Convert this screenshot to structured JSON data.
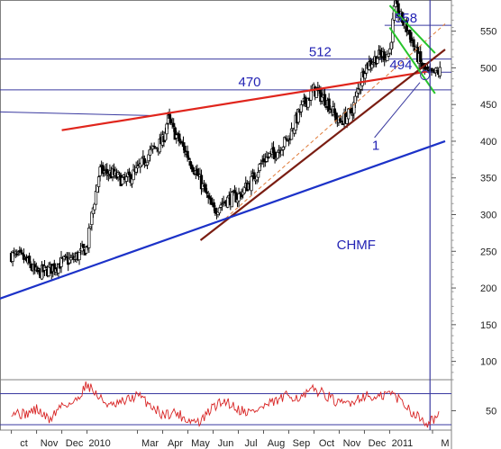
{
  "chart_data": {
    "type": "candlestick",
    "ticker_label": "CHMF",
    "price_axis": {
      "range": [
        75,
        590
      ],
      "ticks": [
        100,
        150,
        200,
        250,
        300,
        350,
        400,
        450,
        500,
        550
      ],
      "tick_labels": [
        "100",
        "150",
        "200",
        "250",
        "300",
        "350",
        "400",
        "450",
        "500",
        "550"
      ]
    },
    "indicator_axis": {
      "range": [
        25,
        90
      ],
      "ticks": [
        50
      ],
      "tick_labels": [
        "50"
      ],
      "guide_levels": [
        72,
        32
      ]
    },
    "x_axis": {
      "labels": [
        "ct",
        "Nov",
        "Dec",
        "2010",
        "Mar",
        "Apr",
        "May",
        "Jun",
        "Jul",
        "Aug",
        "Sep",
        "Oct",
        "Nov",
        "Dec",
        "2011",
        "M"
      ],
      "label_positions": [
        0.5,
        1.5,
        2.5,
        3.5,
        5.5,
        6.5,
        7.5,
        8.5,
        9.5,
        10.5,
        11.5,
        12.5,
        13.5,
        14.5,
        15.5,
        17.2
      ]
    },
    "price_series": {
      "name": "",
      "month_index": [
        0.0,
        0.5,
        1.0,
        1.5,
        2.0,
        2.5,
        3.0,
        3.2,
        3.5,
        4.0,
        4.5,
        5.0,
        5.5,
        6.0,
        6.2,
        6.5,
        7.0,
        7.5,
        8.0,
        8.5,
        9.0,
        9.5,
        10.0,
        10.5,
        11.0,
        11.5,
        12.0,
        12.5,
        13.0,
        13.5,
        14.0,
        14.5,
        15.0,
        15.2,
        15.5,
        15.8,
        16.0,
        16.3,
        16.6,
        17.0
      ],
      "close": [
        245,
        240,
        220,
        225,
        235,
        240,
        255,
        300,
        360,
        355,
        345,
        360,
        385,
        400,
        430,
        410,
        380,
        345,
        305,
        320,
        325,
        345,
        375,
        385,
        405,
        445,
        470,
        455,
        425,
        440,
        500,
        515,
        520,
        585,
        565,
        545,
        525,
        500,
        490,
        495
      ]
    },
    "annotations": {
      "level_labels": [
        "558",
        "512",
        "494",
        "470"
      ],
      "level_values": [
        558,
        512,
        494,
        470
      ],
      "wave_label": "1"
    },
    "trendlines": {
      "red_resistance": [
        [
          2.0,
          415
        ],
        [
          16.5,
          495
        ]
      ],
      "brown_support": [
        [
          7.5,
          265
        ],
        [
          17.2,
          525
        ]
      ],
      "blue_support": [
        [
          -0.5,
          185
        ],
        [
          17.2,
          400
        ]
      ],
      "orange_dashed": [
        [
          8.5,
          295
        ],
        [
          17.2,
          560
        ]
      ],
      "green_channel_upper": [
        [
          15.0,
          585
        ],
        [
          16.8,
          520
        ]
      ],
      "green_channel_lower": [
        [
          15.0,
          555
        ],
        [
          16.8,
          465
        ]
      ],
      "blue_lead_in": [
        [
          -0.5,
          440
        ],
        [
          5.5,
          435
        ]
      ]
    },
    "indicator_series": {
      "name": "",
      "month_index": [
        0.0,
        0.5,
        1.0,
        1.5,
        2.0,
        2.5,
        3.0,
        3.5,
        4.0,
        4.5,
        5.0,
        5.5,
        6.0,
        6.5,
        7.0,
        7.5,
        8.0,
        8.5,
        9.0,
        9.5,
        10.0,
        10.5,
        11.0,
        11.5,
        12.0,
        12.5,
        13.0,
        13.5,
        14.0,
        14.5,
        15.0,
        15.5,
        16.0,
        16.5,
        17.0
      ],
      "values": [
        50,
        45,
        52,
        38,
        58,
        60,
        85,
        66,
        55,
        62,
        70,
        58,
        45,
        48,
        38,
        35,
        55,
        63,
        52,
        48,
        55,
        62,
        70,
        66,
        78,
        70,
        58,
        62,
        70,
        65,
        74,
        62,
        45,
        35,
        45
      ]
    },
    "colors": {
      "candles": "#000000",
      "resistance_line": "#e0251c",
      "support_line_brown": "#7a1d12",
      "support_line_blue": "#1c32c8",
      "level_lines": "#3a3aa0",
      "channel": "#27c42b",
      "indicator": "#d82424",
      "annotation_text": "#2323b4",
      "dashed_trend": "#e07b39"
    }
  }
}
